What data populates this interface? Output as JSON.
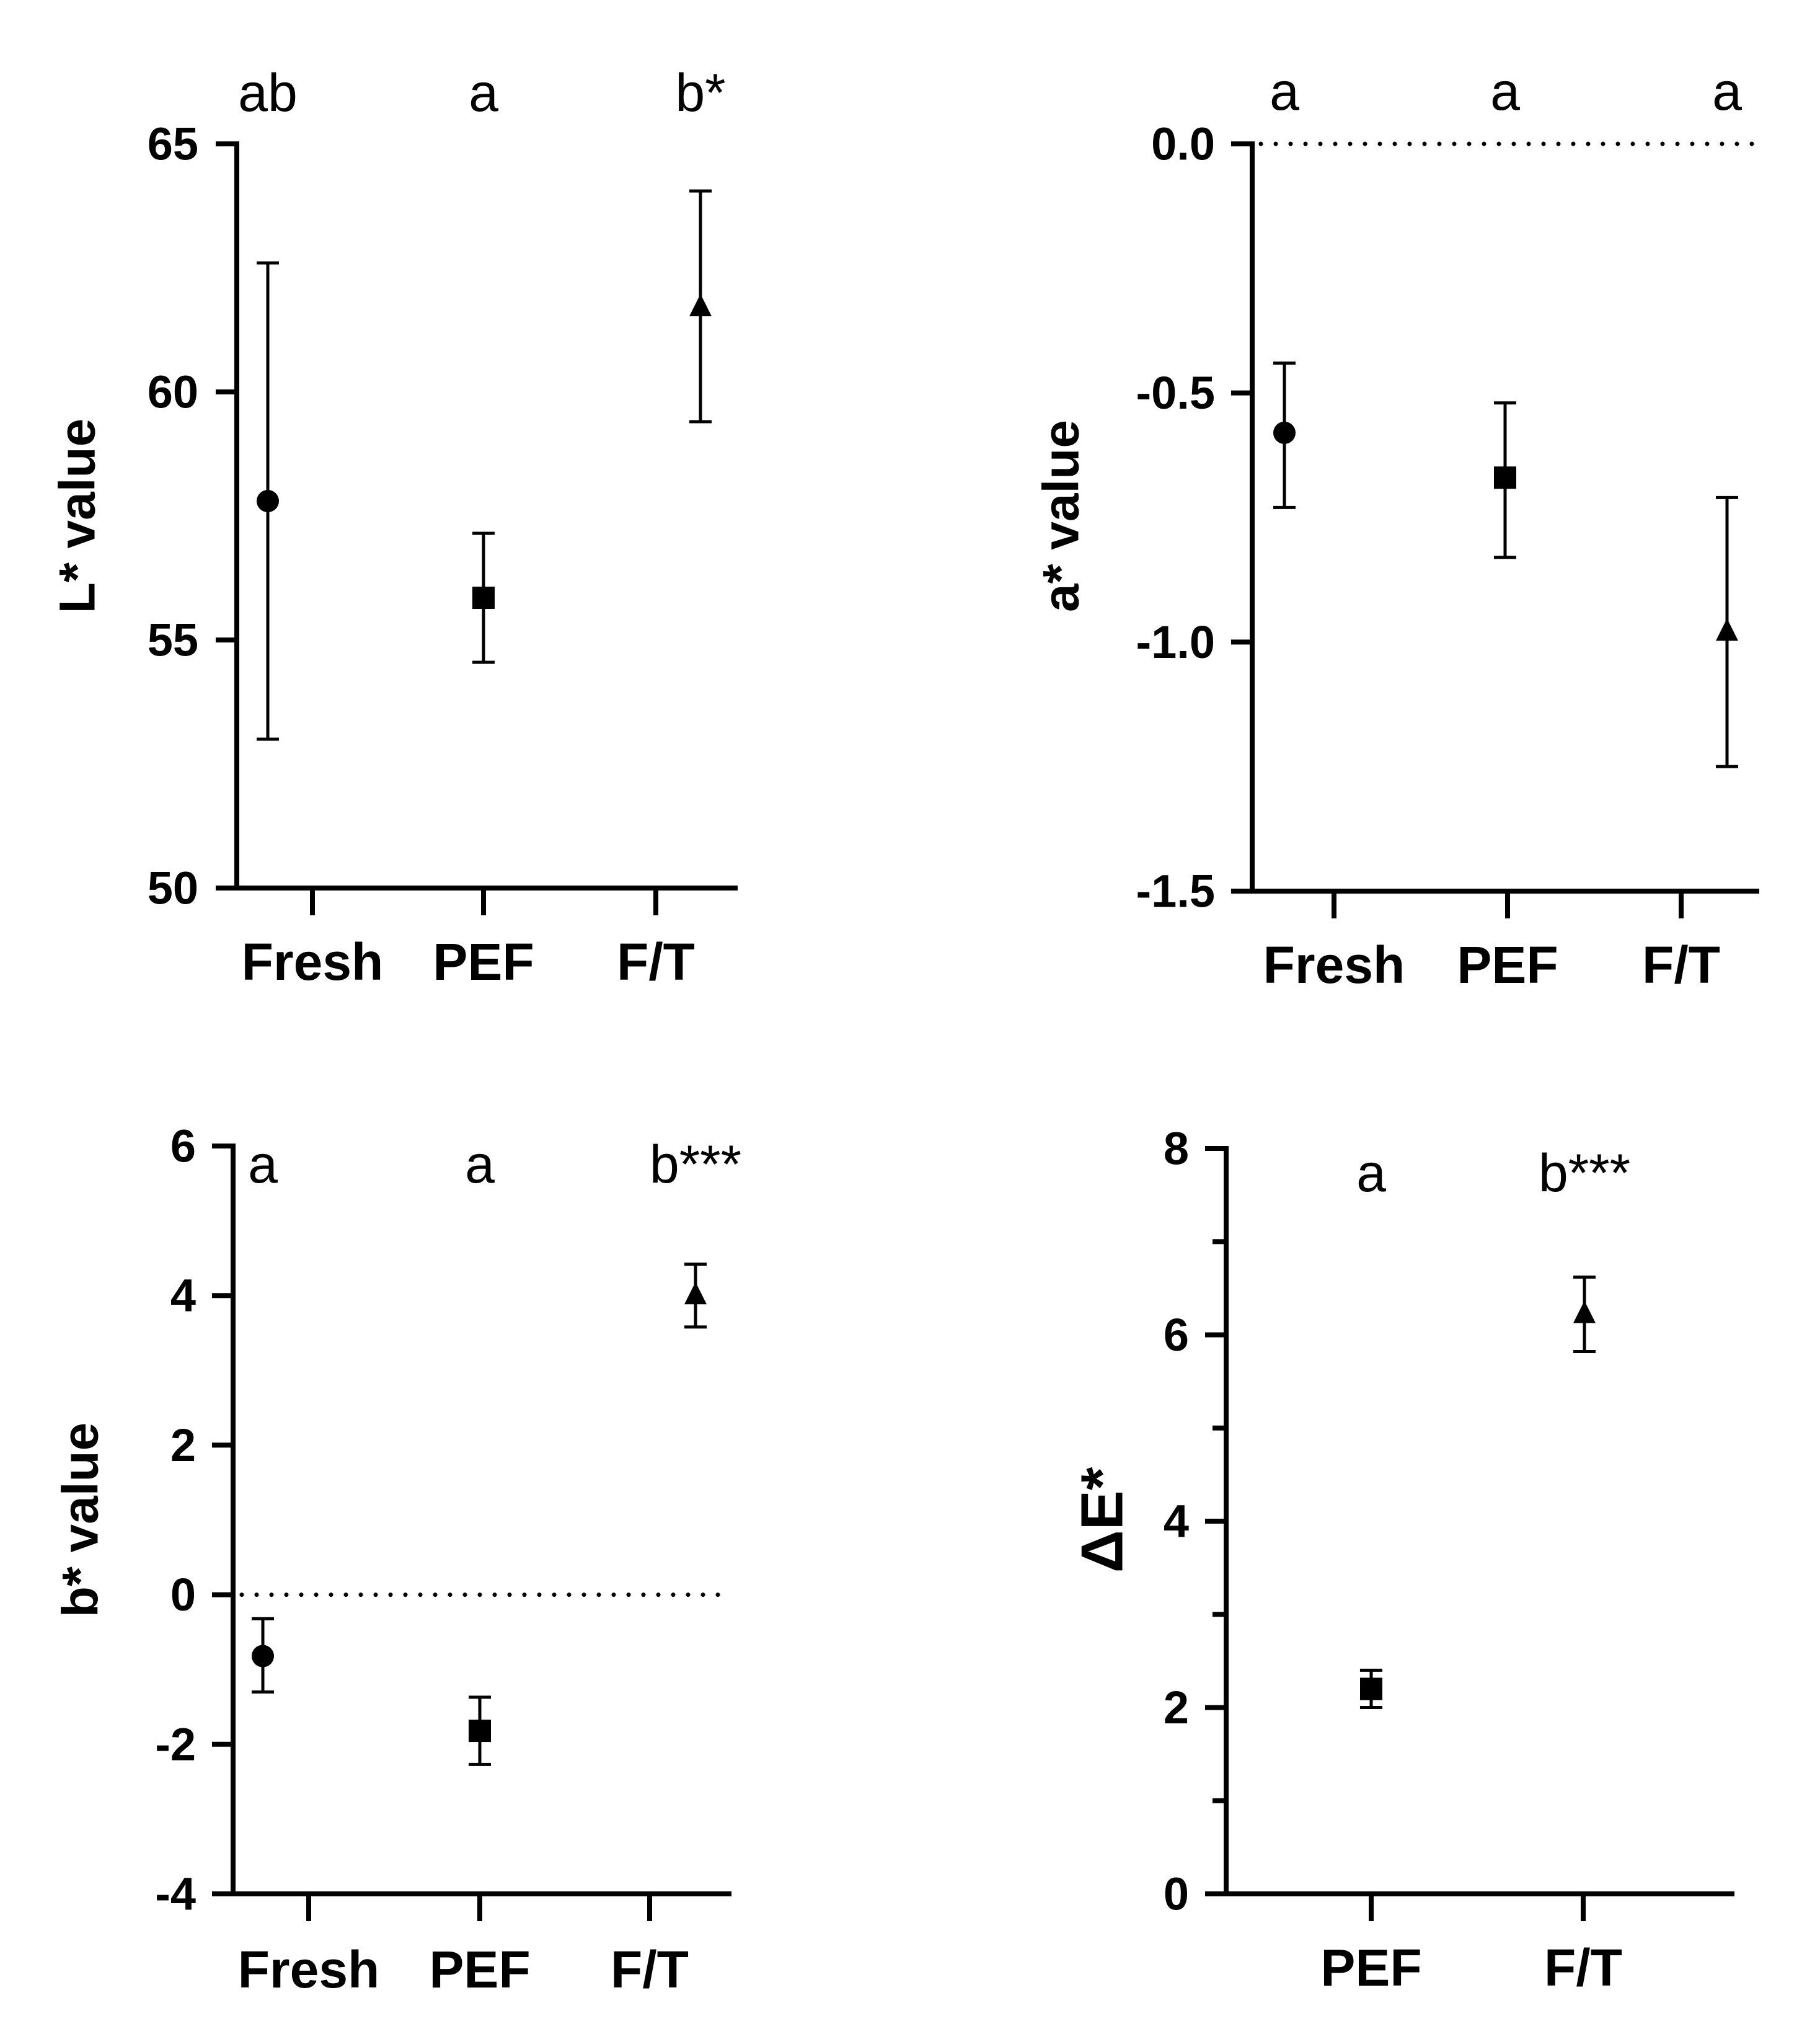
{
  "chart_data": [
    {
      "type": "scatter",
      "ylabel": "L* value",
      "ylim": [
        50,
        65
      ],
      "yticks": [
        50,
        55,
        60,
        65
      ],
      "ytick_labels": [
        "50",
        "55",
        "60",
        "65"
      ],
      "categories": [
        "Fresh",
        "PEF",
        "F/T"
      ],
      "points": [
        {
          "category": "Fresh",
          "marker": "circle",
          "mean": 57.8,
          "err_low": 53.0,
          "err_high": 62.6
        },
        {
          "category": "PEF",
          "marker": "square",
          "mean": 55.85,
          "err_low": 54.55,
          "err_high": 57.15
        },
        {
          "category": "F/T",
          "marker": "triangle",
          "mean": 61.7,
          "err_low": 59.4,
          "err_high": 64.05
        }
      ],
      "significance": [
        "ab",
        "a",
        "b*"
      ],
      "reference_line": null
    },
    {
      "type": "scatter",
      "ylabel": "a* value",
      "ylim": [
        -1.5,
        0.0
      ],
      "yticks": [
        -1.5,
        -1.0,
        -0.5,
        0.0
      ],
      "ytick_labels": [
        "-1.5",
        "-1.0",
        "-0.5",
        "0.0"
      ],
      "categories": [
        "Fresh",
        "PEF",
        "F/T"
      ],
      "points": [
        {
          "category": "Fresh",
          "marker": "circle",
          "mean": -0.58,
          "err_low": -0.73,
          "err_high": -0.44
        },
        {
          "category": "PEF",
          "marker": "square",
          "mean": -0.67,
          "err_low": -0.83,
          "err_high": -0.52
        },
        {
          "category": "F/T",
          "marker": "triangle",
          "mean": -0.98,
          "err_low": -1.25,
          "err_high": -0.71
        }
      ],
      "significance": [
        "a",
        "a",
        "a"
      ],
      "reference_line": 0
    },
    {
      "type": "scatter",
      "ylabel": "b* value",
      "ylim": [
        -4,
        6
      ],
      "yticks": [
        -4,
        -2,
        0,
        2,
        4,
        6
      ],
      "ytick_labels": [
        "-4",
        "-2",
        "0",
        "2",
        "4",
        "6"
      ],
      "categories": [
        "Fresh",
        "PEF",
        "F/T"
      ],
      "points": [
        {
          "category": "Fresh",
          "marker": "circle",
          "mean": -0.82,
          "err_low": -1.3,
          "err_high": -0.32
        },
        {
          "category": "PEF",
          "marker": "square",
          "mean": -1.82,
          "err_low": -2.27,
          "err_high": -1.37
        },
        {
          "category": "F/T",
          "marker": "triangle",
          "mean": 4.0,
          "err_low": 3.58,
          "err_high": 4.42
        }
      ],
      "significance": [
        "a",
        "a",
        "b***"
      ],
      "reference_line": 0
    },
    {
      "type": "scatter",
      "ylabel": "ΔE*",
      "ylim": [
        0,
        8
      ],
      "yticks": [
        0,
        2,
        4,
        6,
        8
      ],
      "ytick_labels": [
        "0",
        "2",
        "4",
        "6",
        "8"
      ],
      "minor_ticks": [
        1,
        3,
        5,
        7
      ],
      "categories": [
        "PEF",
        "F/T"
      ],
      "points": [
        {
          "category": "PEF",
          "marker": "square",
          "mean": 2.2,
          "err_low": 2.0,
          "err_high": 2.4
        },
        {
          "category": "F/T",
          "marker": "triangle",
          "mean": 6.22,
          "err_low": 5.82,
          "err_high": 6.62
        }
      ],
      "significance": [
        "a",
        "b***"
      ],
      "reference_line": null
    }
  ]
}
